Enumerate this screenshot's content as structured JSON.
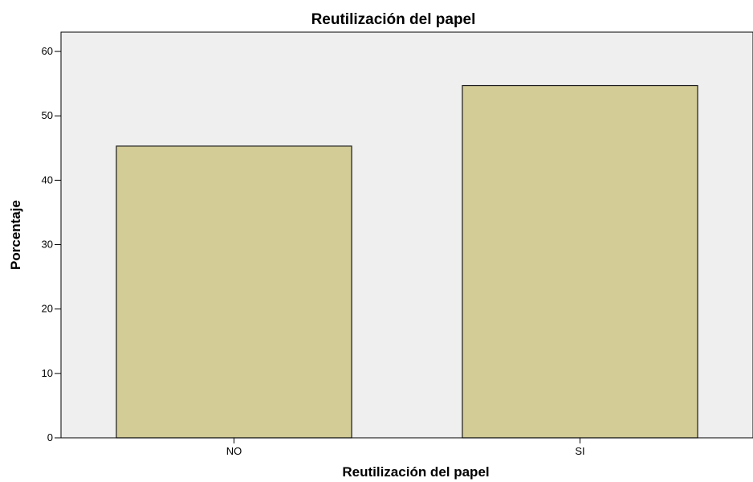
{
  "chart_data": {
    "type": "bar",
    "title": "Reutilización del papel",
    "xlabel": "Reutilización del papel",
    "ylabel": "Porcentaje",
    "categories": [
      "NO",
      "SI"
    ],
    "values": [
      45.3,
      54.7
    ],
    "ylim": [
      0,
      63
    ],
    "yticks": [
      "0",
      "10",
      "20",
      "30",
      "40",
      "50",
      "60"
    ],
    "grid": false,
    "legend": "none",
    "colors": {
      "bar_fill": "#d3cc96",
      "bar_stroke": "#1a1a1a",
      "plot_background": "#efefef",
      "axis": "#000000"
    }
  }
}
